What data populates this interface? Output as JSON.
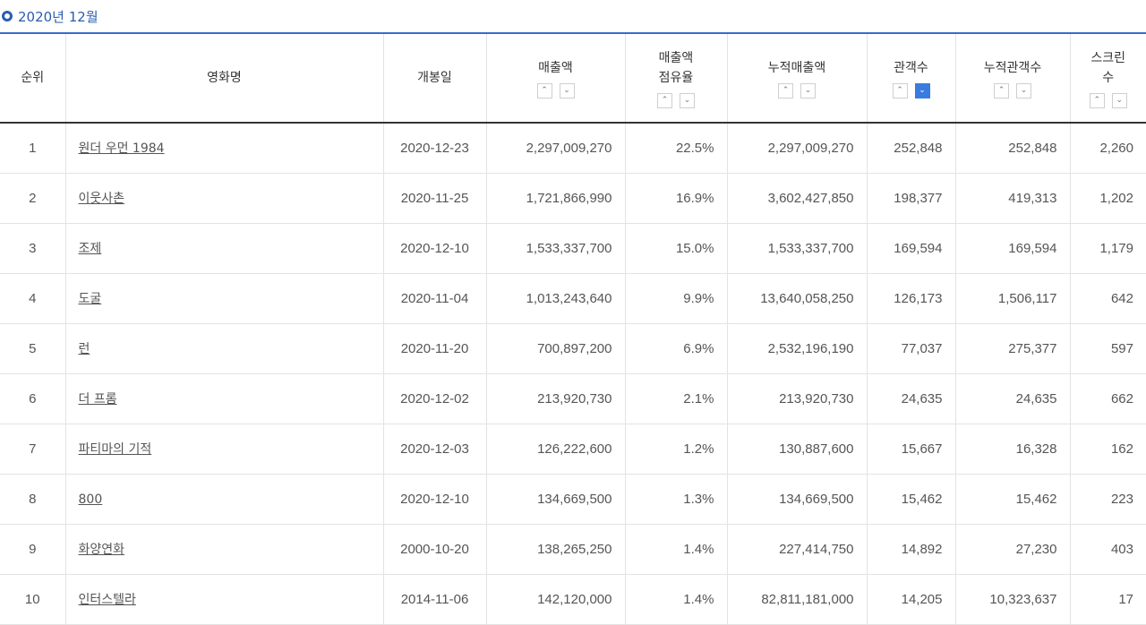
{
  "period": {
    "label": "2020년 12월"
  },
  "headers": {
    "rank": "순위",
    "title": "영화명",
    "release": "개봉일",
    "sales": "매출액",
    "share_line1": "매출액",
    "share_line2": "점유율",
    "cum_sales": "누적매출액",
    "audience": "관객수",
    "cum_audience": "누적관객수",
    "screens_line1": "스크린",
    "screens_line2": "수"
  },
  "sort": {
    "up": "⌃",
    "down": "⌄",
    "active": "audience-desc",
    "active_color": "#3a7be0"
  },
  "rows": [
    {
      "rank": "1",
      "title": "원더 우먼 1984",
      "release": "2020-12-23",
      "sales": "2,297,009,270",
      "share": "22.5%",
      "cum_sales": "2,297,009,270",
      "audience": "252,848",
      "cum_audience": "252,848",
      "screens": "2,260"
    },
    {
      "rank": "2",
      "title": "이웃사촌",
      "release": "2020-11-25",
      "sales": "1,721,866,990",
      "share": "16.9%",
      "cum_sales": "3,602,427,850",
      "audience": "198,377",
      "cum_audience": "419,313",
      "screens": "1,202"
    },
    {
      "rank": "3",
      "title": "조제",
      "release": "2020-12-10",
      "sales": "1,533,337,700",
      "share": "15.0%",
      "cum_sales": "1,533,337,700",
      "audience": "169,594",
      "cum_audience": "169,594",
      "screens": "1,179"
    },
    {
      "rank": "4",
      "title": "도굴",
      "release": "2020-11-04",
      "sales": "1,013,243,640",
      "share": "9.9%",
      "cum_sales": "13,640,058,250",
      "audience": "126,173",
      "cum_audience": "1,506,117",
      "screens": "642"
    },
    {
      "rank": "5",
      "title": "런",
      "release": "2020-11-20",
      "sales": "700,897,200",
      "share": "6.9%",
      "cum_sales": "2,532,196,190",
      "audience": "77,037",
      "cum_audience": "275,377",
      "screens": "597"
    },
    {
      "rank": "6",
      "title": "더 프롬",
      "release": "2020-12-02",
      "sales": "213,920,730",
      "share": "2.1%",
      "cum_sales": "213,920,730",
      "audience": "24,635",
      "cum_audience": "24,635",
      "screens": "662"
    },
    {
      "rank": "7",
      "title": "파티마의 기적",
      "release": "2020-12-03",
      "sales": "126,222,600",
      "share": "1.2%",
      "cum_sales": "130,887,600",
      "audience": "15,667",
      "cum_audience": "16,328",
      "screens": "162"
    },
    {
      "rank": "8",
      "title": "800",
      "release": "2020-12-10",
      "sales": "134,669,500",
      "share": "1.3%",
      "cum_sales": "134,669,500",
      "audience": "15,462",
      "cum_audience": "15,462",
      "screens": "223"
    },
    {
      "rank": "9",
      "title": "화양연화",
      "release": "2000-10-20",
      "sales": "138,265,250",
      "share": "1.4%",
      "cum_sales": "227,414,750",
      "audience": "14,892",
      "cum_audience": "27,230",
      "screens": "403"
    },
    {
      "rank": "10",
      "title": "인터스텔라",
      "release": "2014-11-06",
      "sales": "142,120,000",
      "share": "1.4%",
      "cum_sales": "82,811,181,000",
      "audience": "14,205",
      "cum_audience": "10,323,637",
      "screens": "17"
    }
  ]
}
